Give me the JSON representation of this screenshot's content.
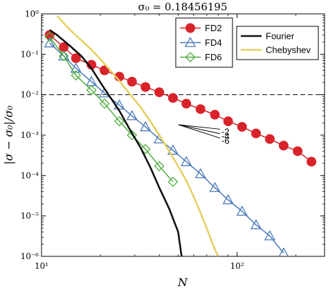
{
  "chart_data": {
    "type": "line",
    "title": "σ₀ = 0.18456195",
    "xlabel": "N",
    "ylabel": "|σ − σ₀|/σ₀",
    "x_scale": "log",
    "y_scale": "log",
    "xlim": [
      10,
      280
    ],
    "ylim": [
      1e-06,
      1
    ],
    "x_ticks": [
      {
        "value": 10,
        "label": "10¹"
      },
      {
        "value": 100,
        "label": "10²"
      }
    ],
    "y_ticks": [
      {
        "value": 1e-06,
        "label": "10⁻⁶"
      },
      {
        "value": 1e-05,
        "label": "10⁻⁵"
      },
      {
        "value": 0.0001,
        "label": "10⁻⁴"
      },
      {
        "value": 0.001,
        "label": "10⁻³"
      },
      {
        "value": 0.01,
        "label": "10⁻²"
      },
      {
        "value": 0.1,
        "label": "10⁻¹"
      },
      {
        "value": 1,
        "label": "10⁰"
      }
    ],
    "grid": false,
    "legend_position": "top-right",
    "reference_line": {
      "y": 0.01,
      "style": "dashed"
    },
    "series": [
      {
        "name": "FD2",
        "color": "#d9232b",
        "marker": "circle",
        "x": [
          11,
          13,
          15,
          18,
          21,
          25,
          29,
          34,
          40,
          47,
          55,
          65,
          77,
          90,
          106,
          125,
          147,
          173,
          204,
          240
        ],
        "y": [
          0.3,
          0.15,
          0.08,
          0.055,
          0.04,
          0.028,
          0.021,
          0.0155,
          0.0115,
          0.0083,
          0.006,
          0.0044,
          0.0032,
          0.0022,
          0.0016,
          0.0011,
          0.0008,
          0.00055,
          0.0004,
          0.00022
        ]
      },
      {
        "name": "FD4",
        "color": "#4a79b8",
        "marker": "triangle",
        "x": [
          11,
          13,
          15,
          18,
          21,
          25,
          29,
          34,
          40,
          47,
          55,
          65,
          77,
          90,
          106,
          125,
          147,
          173
        ],
        "y": [
          0.19,
          0.09,
          0.045,
          0.021,
          0.011,
          0.0055,
          0.003,
          0.0016,
          0.0008,
          0.00042,
          0.00022,
          0.00011,
          5e-05,
          2.5e-05,
          1.3e-05,
          6e-06,
          3.2e-06,
          1.2e-06
        ]
      },
      {
        "name": "FD6",
        "color": "#4fae3f",
        "marker": "diamond",
        "x": [
          11,
          13,
          15,
          18,
          21,
          25,
          29,
          34,
          40,
          47
        ],
        "y": [
          0.27,
          0.09,
          0.03,
          0.013,
          0.006,
          0.0022,
          0.001,
          0.00045,
          0.00017,
          7e-05
        ]
      },
      {
        "name": "Fourier",
        "color": "#111111",
        "marker": "none",
        "x": [
          11,
          12,
          14,
          16,
          18,
          20,
          22,
          25,
          28,
          32,
          36,
          40,
          45,
          50,
          52
        ],
        "y": [
          0.4,
          0.3,
          0.16,
          0.09,
          0.045,
          0.02,
          0.01,
          0.004,
          0.0015,
          0.0005,
          0.00016,
          5e-05,
          1.5e-05,
          4e-06,
          1e-06
        ]
      },
      {
        "name": "Chebyshev",
        "color": "#e6cf63",
        "marker": "none",
        "x": [
          12,
          14,
          16,
          18,
          20,
          22,
          25,
          28,
          32,
          36,
          40,
          45,
          50,
          55,
          60,
          65,
          70,
          75,
          80
        ],
        "y": [
          0.9,
          0.4,
          0.22,
          0.13,
          0.075,
          0.045,
          0.022,
          0.011,
          0.005,
          0.0022,
          0.001,
          0.0004,
          0.00017,
          7.5e-05,
          3e-05,
          1.2e-05,
          5e-06,
          2e-06,
          1e-06
        ]
      }
    ],
    "slope_annotations": [
      {
        "label": "-2",
        "slope": -2
      },
      {
        "label": "-4",
        "slope": -4
      },
      {
        "label": "-6",
        "slope": -6
      }
    ]
  }
}
